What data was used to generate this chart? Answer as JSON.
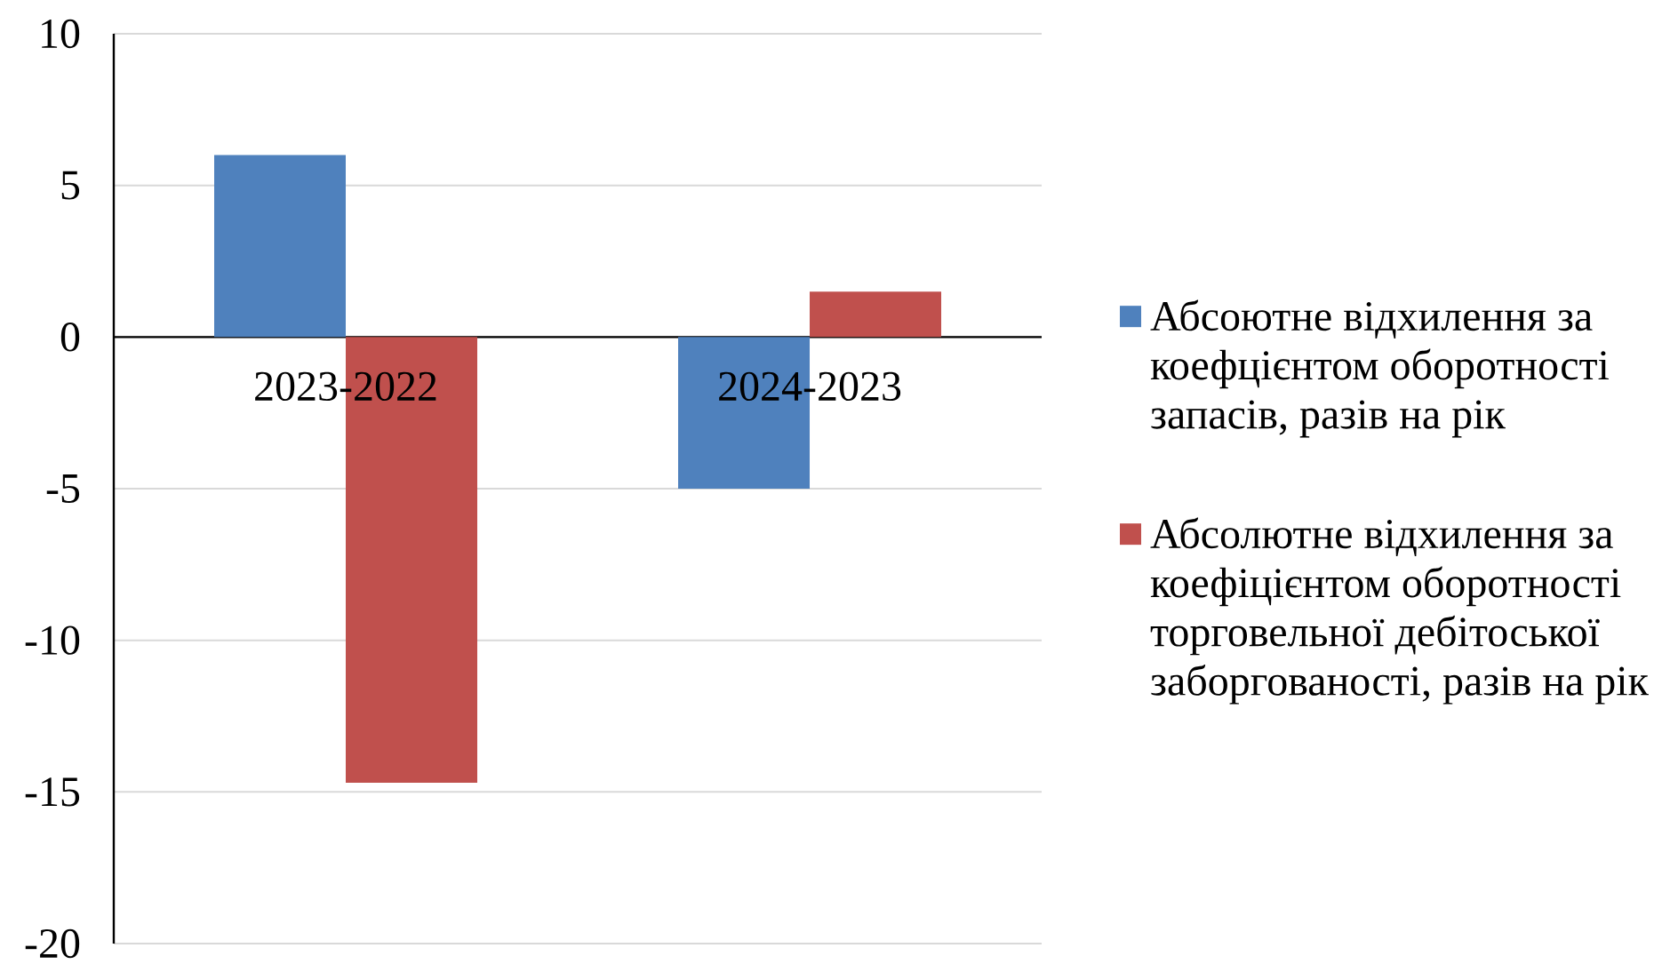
{
  "chart_data": {
    "type": "bar",
    "categories": [
      "2023-2022",
      "2024-2023"
    ],
    "series": [
      {
        "name": "Абсоютне відхилення за коефцієнтом оборотності запасів, разів на рік",
        "color": "#4f81bd",
        "values": [
          6.0,
          -5.0
        ]
      },
      {
        "name": "Абсолютне відхилення за коефіцієнтом оборотності торговельної дебітоської заборгованості, разів на рік",
        "color": "#c0504d",
        "values": [
          -14.7,
          1.5
        ]
      }
    ],
    "ylim": [
      -20,
      10
    ],
    "yticks": [
      -20,
      -15,
      -10,
      -5,
      0,
      5,
      10
    ],
    "grid": "y",
    "legend": "right"
  }
}
